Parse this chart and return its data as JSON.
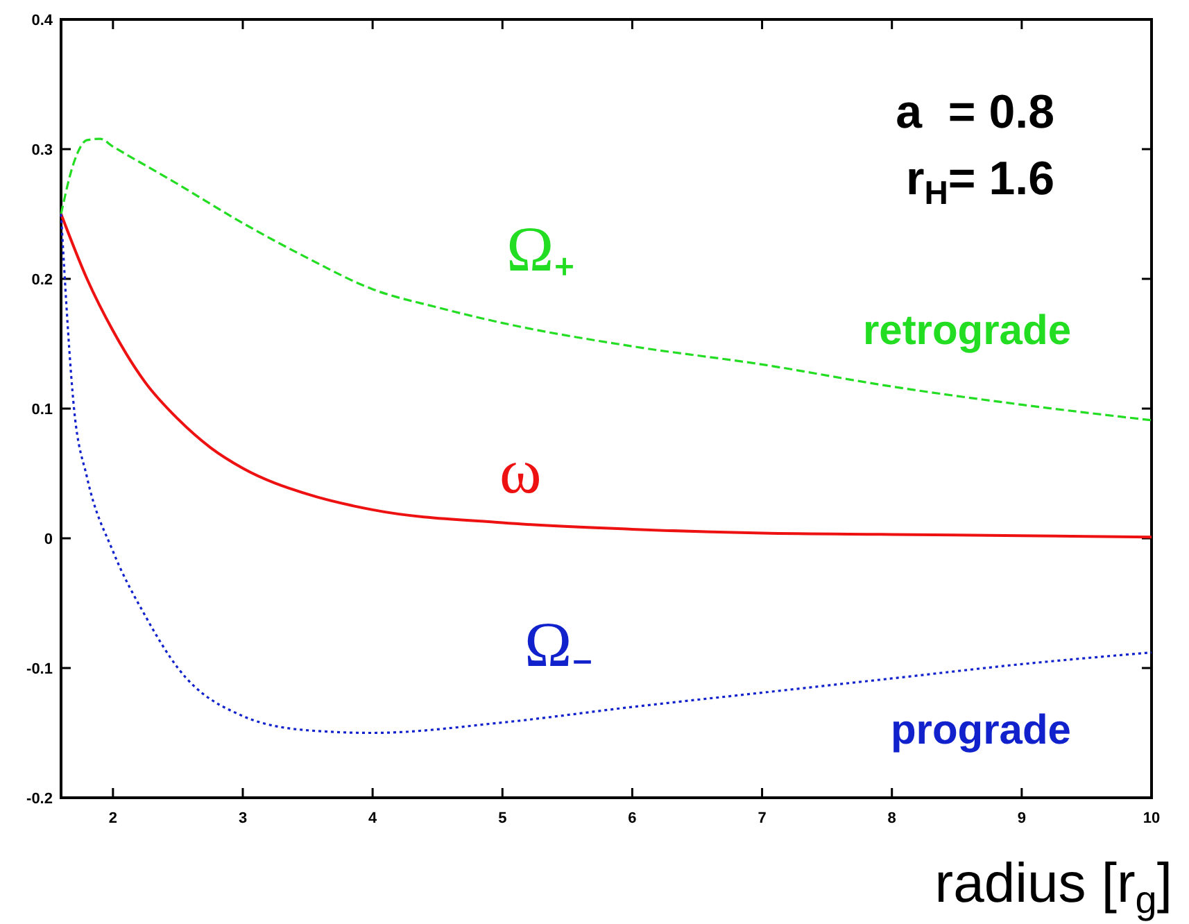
{
  "chart_data": {
    "type": "line",
    "xlabel": "radius [r$_{g}$]",
    "xlim": [
      1.6,
      10
    ],
    "xticks": [
      2,
      3,
      4,
      5,
      6,
      7,
      8,
      9,
      10
    ],
    "ylim": [
      -0.2,
      0.4
    ],
    "yticks": [
      {
        "value": 0.4,
        "label": "0.4"
      },
      {
        "value": 0.3,
        "label": "0.3"
      },
      {
        "value": 0.2,
        "label": "0.2"
      },
      {
        "value": 0.1,
        "label": "0.1"
      },
      0,
      {
        "value": -0.1,
        "label": "-0.1"
      },
      {
        "value": -0.2,
        "label": "-0.2"
      }
    ],
    "grid": false,
    "series": [
      {
        "name": "Ω₊",
        "color": "#22dd22",
        "line_style": "dashed",
        "x": [
          1.6,
          1.7,
          1.8,
          1.9,
          2,
          2.5,
          3,
          3.5,
          4,
          4.5,
          5,
          6,
          7,
          8,
          9,
          10
        ],
        "values": [
          0.25,
          0.29,
          0.307,
          0.308,
          0.302,
          0.273,
          0.243,
          0.216,
          0.192,
          0.178,
          0.166,
          0.148,
          0.134,
          0.117,
          0.103,
          0.091
        ]
      },
      {
        "name": "ω",
        "color": "#ee1111",
        "line_style": "solid",
        "x": [
          1.6,
          1.8,
          2,
          2.25,
          2.5,
          2.75,
          3,
          3.5,
          4,
          5,
          6,
          7,
          8,
          9,
          10
        ],
        "values": [
          0.25,
          0.2,
          0.16,
          0.12,
          0.092,
          0.07,
          0.054,
          0.034,
          0.022,
          0.012,
          0.007,
          0.004,
          0.003,
          0.002,
          0.001
        ]
      },
      {
        "name": "Ω₋",
        "color": "#1122cc",
        "line_style": "dotted",
        "x": [
          1.6,
          1.7,
          1.8,
          2,
          2.25,
          2.5,
          3,
          3.5,
          4,
          5,
          6,
          7,
          8,
          9,
          10
        ],
        "values": [
          0.25,
          0.1,
          0.047,
          -0.01,
          -0.06,
          -0.1,
          -0.137,
          -0.148,
          -0.15,
          -0.142,
          -0.13,
          -0.119,
          -0.108,
          -0.097,
          -0.088
        ]
      }
    ],
    "annotations": [
      "a  = 0.8",
      "r$_{H}$= 1.6",
      "retrograde",
      "prograde"
    ]
  }
}
